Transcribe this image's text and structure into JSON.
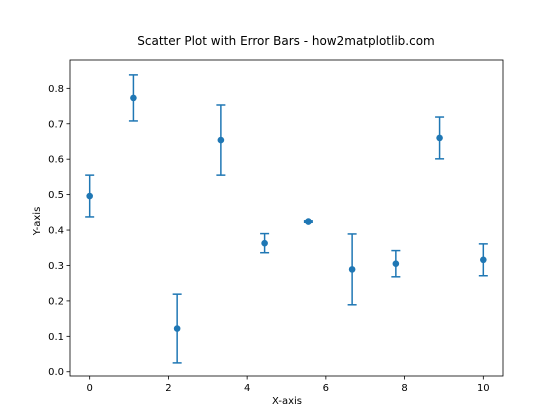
{
  "chart_data": {
    "type": "scatter",
    "title": "Scatter Plot with Error Bars - how2matplotlib.com",
    "xlabel": "X-axis",
    "ylabel": "Y-axis",
    "xlim": [
      -0.5,
      10.5
    ],
    "ylim": [
      -0.012,
      0.88
    ],
    "xticks": [
      0,
      2,
      4,
      6,
      8,
      10
    ],
    "xtick_labels": [
      "0",
      "2",
      "4",
      "6",
      "8",
      "10"
    ],
    "yticks": [
      0.0,
      0.1,
      0.2,
      0.3,
      0.4,
      0.5,
      0.6,
      0.7,
      0.8
    ],
    "ytick_labels": [
      "0.0",
      "0.1",
      "0.2",
      "0.3",
      "0.4",
      "0.5",
      "0.6",
      "0.7",
      "0.8"
    ],
    "grid": false,
    "color": "#1f77b4",
    "series": [
      {
        "x": [
          0.0,
          1.111,
          2.222,
          3.333,
          4.444,
          5.556,
          6.667,
          7.778,
          8.889,
          10.0
        ],
        "y": [
          0.496,
          0.773,
          0.122,
          0.654,
          0.363,
          0.424,
          0.289,
          0.305,
          0.66,
          0.316
        ],
        "yerr": [
          0.059,
          0.065,
          0.097,
          0.099,
          0.027,
          0.002,
          0.1,
          0.037,
          0.059,
          0.045
        ]
      }
    ]
  }
}
